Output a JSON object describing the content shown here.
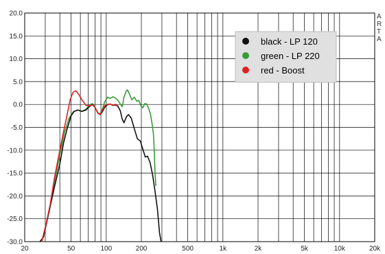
{
  "chart_data": {
    "type": "line",
    "x_scale": "log",
    "xlim": [
      20,
      20000
    ],
    "ylim": [
      -30,
      20
    ],
    "grid": true,
    "legend_placement": "top-right",
    "x_ticks": [
      {
        "value": 20,
        "label": "20"
      },
      {
        "value": 50,
        "label": "50"
      },
      {
        "value": 100,
        "label": "100"
      },
      {
        "value": 200,
        "label": "200"
      },
      {
        "value": 500,
        "label": "500"
      },
      {
        "value": 1000,
        "label": "1k"
      },
      {
        "value": 2000,
        "label": "2k"
      },
      {
        "value": 5000,
        "label": "5k"
      },
      {
        "value": 10000,
        "label": "10k"
      },
      {
        "value": 20000,
        "label": "20k"
      }
    ],
    "y_ticks": [
      {
        "value": 20,
        "label": "20.0"
      },
      {
        "value": 15,
        "label": "15.0"
      },
      {
        "value": 10,
        "label": "10.0"
      },
      {
        "value": 5,
        "label": "5.0"
      },
      {
        "value": 0,
        "label": "0.0"
      },
      {
        "value": -5,
        "label": "-5.0"
      },
      {
        "value": -10,
        "label": "-10.0"
      },
      {
        "value": -15,
        "label": "-15.0"
      },
      {
        "value": -20,
        "label": "-20.0"
      },
      {
        "value": -25,
        "label": "-25.0"
      },
      {
        "value": -30,
        "label": "-30.0"
      }
    ],
    "watermark": [
      "A",
      "R",
      "T",
      "A"
    ],
    "series": [
      {
        "key": "green",
        "color": "#3a9a3a",
        "legend_label": "green - LP 220",
        "points": [
          [
            28,
            -30
          ],
          [
            32,
            -24
          ],
          [
            36,
            -17
          ],
          [
            40,
            -11
          ],
          [
            44,
            -6
          ],
          [
            48,
            -3
          ],
          [
            52,
            -1.6
          ],
          [
            57,
            -1.2
          ],
          [
            62,
            -1.5
          ],
          [
            67,
            -1
          ],
          [
            72,
            -0.1
          ],
          [
            76,
            0.2
          ],
          [
            80,
            -0.6
          ],
          [
            85,
            -1.9
          ],
          [
            89,
            -2
          ],
          [
            93,
            -0.9
          ],
          [
            97,
            0.6
          ],
          [
            103,
            1.6
          ],
          [
            108,
            1.3
          ],
          [
            114,
            1.7
          ],
          [
            120,
            1.4
          ],
          [
            126,
            0.9
          ],
          [
            132,
            0.1
          ],
          [
            137,
            -0.5
          ],
          [
            142,
            1.6
          ],
          [
            148,
            2.9
          ],
          [
            152,
            3.2
          ],
          [
            158,
            2.3
          ],
          [
            166,
            1
          ],
          [
            174,
            1.6
          ],
          [
            183,
            0.7
          ],
          [
            190,
            0.9
          ],
          [
            198,
            -0.3
          ],
          [
            206,
            -0.7
          ],
          [
            214,
            0.2
          ],
          [
            222,
            0.1
          ],
          [
            232,
            -1
          ],
          [
            240,
            -2.3
          ],
          [
            248,
            -4.5
          ],
          [
            254,
            -6.5
          ],
          [
            258,
            -10
          ],
          [
            262,
            -15
          ],
          [
            266,
            -17.8
          ]
        ]
      },
      {
        "key": "black",
        "color": "#111111",
        "legend_label": "black - LP 120",
        "points": [
          [
            27,
            -31
          ],
          [
            29,
            -29
          ],
          [
            32,
            -24
          ],
          [
            36,
            -18
          ],
          [
            40,
            -13
          ],
          [
            43,
            -8.5
          ],
          [
            46,
            -5.5
          ],
          [
            50,
            -2.5
          ],
          [
            53,
            -1.5
          ],
          [
            57,
            -1.2
          ],
          [
            62,
            -1.5
          ],
          [
            67,
            -1.2
          ],
          [
            72,
            -0.4
          ],
          [
            76,
            0
          ],
          [
            80,
            -0.6
          ],
          [
            85,
            -1.9
          ],
          [
            89,
            -2.2
          ],
          [
            93,
            -1.5
          ],
          [
            97,
            -0.6
          ],
          [
            102,
            -0.1
          ],
          [
            108,
            0.1
          ],
          [
            114,
            -0.2
          ],
          [
            120,
            -0.1
          ],
          [
            126,
            -0.4
          ],
          [
            132,
            -1.4
          ],
          [
            137,
            -3.2
          ],
          [
            142,
            -4
          ],
          [
            148,
            -2.8
          ],
          [
            155,
            -2.2
          ],
          [
            164,
            -3
          ],
          [
            175,
            -5.5
          ],
          [
            185,
            -7.5
          ],
          [
            196,
            -8
          ],
          [
            206,
            -9.8
          ],
          [
            216,
            -11.5
          ],
          [
            226,
            -11.3
          ],
          [
            238,
            -12.8
          ],
          [
            250,
            -15.5
          ],
          [
            262,
            -19
          ],
          [
            275,
            -23
          ],
          [
            286,
            -28
          ],
          [
            295,
            -30
          ]
        ]
      },
      {
        "key": "red",
        "color": "#dd2222",
        "legend_label": "red - Boost",
        "points": [
          [
            28,
            -30
          ],
          [
            30,
            -27
          ],
          [
            33,
            -22
          ],
          [
            36,
            -16
          ],
          [
            40,
            -10
          ],
          [
            43,
            -6
          ],
          [
            46,
            -2.5
          ],
          [
            49,
            1
          ],
          [
            52,
            2.7
          ],
          [
            55,
            3
          ],
          [
            58,
            2.2
          ],
          [
            62,
            1
          ],
          [
            67,
            -0.2
          ],
          [
            72,
            -0.3
          ],
          [
            76,
            -0.1
          ],
          [
            80,
            -0.6
          ],
          [
            85,
            -2
          ],
          [
            89,
            -2.1
          ],
          [
            93,
            -1.2
          ],
          [
            97,
            -0.3
          ],
          [
            102,
            0
          ],
          [
            108,
            0.1
          ],
          [
            114,
            -0.1
          ],
          [
            120,
            0
          ],
          [
            126,
            -0.3
          ]
        ]
      }
    ]
  }
}
